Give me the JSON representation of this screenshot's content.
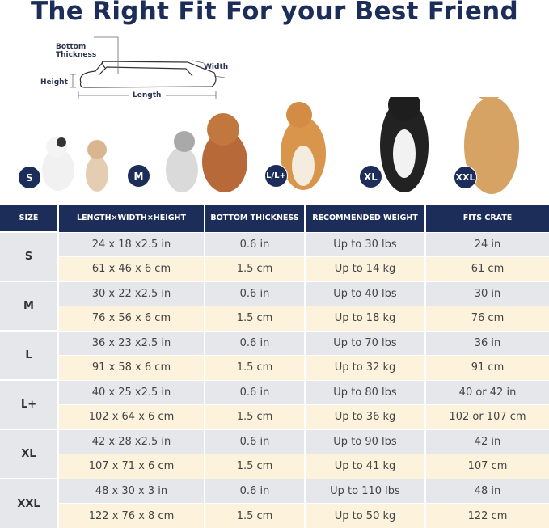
{
  "title": "The Right Fit For your Best Friend",
  "diagram": {
    "bottom_thickness": "Bottom Thickness",
    "width": "Width",
    "height": "Height",
    "length": "Length"
  },
  "badges": [
    "S",
    "M",
    "L/L+",
    "XL",
    "XXL"
  ],
  "table": {
    "headers": [
      "SIZE",
      "LENGTH×WIDTH×HEIGHT",
      "BOTTOM THICKNESS",
      "RECOMMENDED WEIGHT",
      "FITS CRATE"
    ],
    "rows": [
      {
        "size": "S",
        "in": [
          "24 x 18 x2.5 in",
          "0.6 in",
          "Up to 30 lbs",
          "24 in"
        ],
        "cm": [
          "61 x 46 x 6 cm",
          "1.5 cm",
          "Up to 14 kg",
          "61 cm"
        ]
      },
      {
        "size": "M",
        "in": [
          "30 x 22 x2.5 in",
          "0.6 in",
          "Up to 40 lbs",
          "30 in"
        ],
        "cm": [
          "76 x 56 x 6 cm",
          "1.5 cm",
          "Up to 18 kg",
          "76 cm"
        ]
      },
      {
        "size": "L",
        "in": [
          "36 x 23 x2.5 in",
          "0.6 in",
          "Up to 70 lbs",
          "36 in"
        ],
        "cm": [
          "91 x 58 x 6 cm",
          "1.5 cm",
          "Up to 32 kg",
          "91 cm"
        ]
      },
      {
        "size": "L+",
        "in": [
          "40 x 25 x2.5 in",
          "0.6 in",
          "Up to 80 lbs",
          "40 or 42 in"
        ],
        "cm": [
          "102 x 64 x 6 cm",
          "1.5 cm",
          "Up to 36 kg",
          "102 or 107 cm"
        ]
      },
      {
        "size": "XL",
        "in": [
          "42 x 28 x2.5 in",
          "0.6 in",
          "Up to 90 lbs",
          "42 in"
        ],
        "cm": [
          "107 x 71 x 6 cm",
          "1.5 cm",
          "Up to 41 kg",
          "107 cm"
        ]
      },
      {
        "size": "XXL",
        "in": [
          "48 x 30 x 3 in",
          "0.6 in",
          "Up to 110 lbs",
          "48 in"
        ],
        "cm": [
          "122 x 76 x 8 cm",
          "1.5 cm",
          "Up to 50 kg",
          "122 cm"
        ]
      }
    ]
  },
  "colors": {
    "navy": "#1c2d59",
    "gray_row": "#e6e7eb",
    "cream_row": "#fdf2dc"
  }
}
